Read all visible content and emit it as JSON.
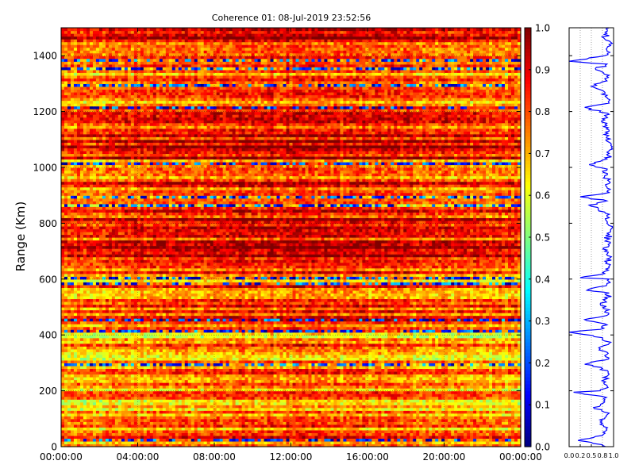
{
  "chart_data": [
    {
      "type": "heatmap",
      "title": "Coherence 01: 08-Jul-2019 23:52:56",
      "xlabel": "",
      "ylabel": "Range (Km)",
      "x_tick_labels": [
        "00:00:00",
        "04:00:00",
        "08:00:00",
        "12:00:00",
        "16:00:00",
        "20:00:00",
        "00:00:00"
      ],
      "x_tick_hours": [
        0,
        4,
        8,
        12,
        16,
        20,
        24
      ],
      "xlim_hours": [
        0,
        24
      ],
      "ylim": [
        0,
        1500
      ],
      "y_ticks": [
        0,
        200,
        400,
        600,
        800,
        1000,
        1200,
        1400
      ],
      "colormap": "jet",
      "clim": [
        0,
        1
      ],
      "colorbar_ticks": [
        0.0,
        0.1,
        0.2,
        0.3,
        0.4,
        0.5,
        0.6,
        0.7,
        0.8,
        0.9,
        1.0
      ],
      "colorbar_tick_labels": [
        "0.0",
        "0.1",
        "0.2",
        "0.3",
        "0.4",
        "0.5",
        "0.6",
        "0.7",
        "0.8",
        "0.9",
        "1.0"
      ],
      "grid": true,
      "range_band_coherence": {
        "range_km": [
          0,
          50,
          100,
          150,
          200,
          250,
          300,
          350,
          400,
          450,
          500,
          550,
          600,
          650,
          700,
          750,
          800,
          850,
          900,
          950,
          1000,
          1050,
          1100,
          1150,
          1200,
          1250,
          1300,
          1350,
          1400,
          1450,
          1500
        ],
        "mean_coherence": [
          0.7,
          0.72,
          0.68,
          0.66,
          0.7,
          0.72,
          0.65,
          0.72,
          0.6,
          0.78,
          0.82,
          0.68,
          0.75,
          0.86,
          0.85,
          0.85,
          0.84,
          0.76,
          0.68,
          0.78,
          0.65,
          0.9,
          0.82,
          0.84,
          0.72,
          0.8,
          0.68,
          0.74,
          0.76,
          0.82,
          0.8
        ]
      },
      "low_coherence_range_km": [
        22,
        295,
        410,
        455,
        580,
        605,
        865,
        895,
        1010,
        1215,
        1290,
        1350,
        1380
      ]
    },
    {
      "type": "line",
      "title": "",
      "xlabel": "",
      "ylabel": "",
      "x_tick_labels": [
        "0.0",
        "0.2",
        "0.5",
        "0.8",
        "1.0"
      ],
      "x_ticks": [
        0.0,
        0.25,
        0.5,
        0.75,
        1.0
      ],
      "xlim": [
        0,
        1
      ],
      "ylim": [
        0,
        1500
      ],
      "orientation": "profile",
      "series": [
        {
          "color": "#0000ff",
          "range_km": [
            0,
            15,
            22,
            40,
            60,
            80,
            100,
            120,
            140,
            160,
            180,
            195,
            200,
            220,
            240,
            260,
            280,
            295,
            310,
            330,
            350,
            370,
            390,
            410,
            420,
            440,
            455,
            470,
            490,
            510,
            530,
            550,
            560,
            580,
            600,
            605,
            620,
            640,
            660,
            680,
            700,
            720,
            740,
            760,
            780,
            800,
            820,
            840,
            865,
            880,
            895,
            910,
            930,
            950,
            970,
            990,
            1010,
            1030,
            1050,
            1070,
            1090,
            1110,
            1130,
            1150,
            1170,
            1190,
            1215,
            1230,
            1250,
            1270,
            1290,
            1310,
            1330,
            1350,
            1370,
            1380,
            1400,
            1420,
            1440,
            1460,
            1480,
            1500
          ],
          "coherence": [
            0.82,
            0.5,
            0.2,
            0.75,
            0.85,
            0.7,
            0.8,
            0.9,
            0.55,
            0.8,
            0.75,
            0.1,
            0.7,
            0.85,
            0.8,
            0.9,
            0.75,
            0.35,
            0.8,
            0.85,
            0.7,
            0.9,
            0.75,
            0.0,
            0.7,
            0.8,
            0.35,
            0.85,
            0.9,
            0.7,
            0.85,
            0.9,
            0.4,
            0.85,
            0.9,
            0.25,
            0.8,
            0.9,
            0.85,
            0.95,
            0.8,
            0.9,
            0.85,
            0.9,
            0.95,
            0.85,
            0.9,
            0.8,
            0.45,
            0.85,
            0.25,
            0.9,
            0.85,
            0.9,
            0.8,
            0.85,
            0.45,
            0.85,
            0.9,
            0.95,
            0.9,
            0.85,
            0.9,
            0.85,
            0.8,
            0.9,
            0.35,
            0.9,
            0.85,
            0.8,
            0.5,
            0.85,
            0.9,
            0.6,
            0.85,
            0.0,
            0.8,
            0.85,
            0.9,
            0.8,
            0.85,
            0.9
          ]
        }
      ]
    }
  ]
}
